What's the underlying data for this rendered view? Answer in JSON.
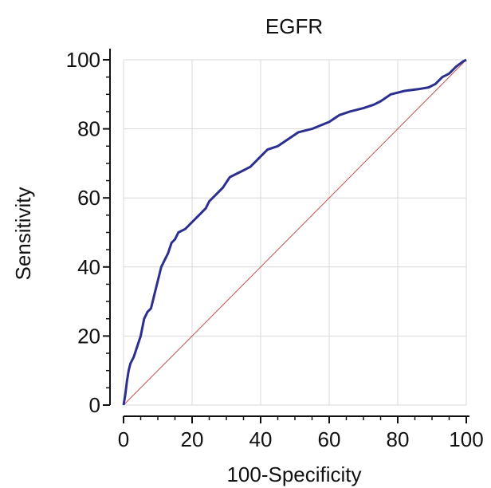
{
  "chart_data": {
    "type": "line",
    "title": "EGFR",
    "xlabel": "100-Specificity",
    "ylabel": "Sensitivity",
    "xlim": [
      0,
      100
    ],
    "ylim": [
      0,
      100
    ],
    "xticks": [
      "0",
      "20",
      "40",
      "60",
      "80",
      "100"
    ],
    "yticks": [
      "0",
      "20",
      "40",
      "60",
      "80",
      "100"
    ],
    "grid": true,
    "series": [
      {
        "color": "#2b2f8f",
        "points": [
          [
            0,
            0
          ],
          [
            0.5,
            3
          ],
          [
            1,
            7
          ],
          [
            1.5,
            10
          ],
          [
            2,
            12
          ],
          [
            3,
            14
          ],
          [
            4,
            17
          ],
          [
            5,
            20
          ],
          [
            6,
            25
          ],
          [
            7,
            27
          ],
          [
            8,
            28
          ],
          [
            9,
            32
          ],
          [
            10,
            36
          ],
          [
            11,
            40
          ],
          [
            12,
            42
          ],
          [
            13,
            44
          ],
          [
            14,
            47
          ],
          [
            15,
            48
          ],
          [
            16,
            50
          ],
          [
            18,
            51
          ],
          [
            20,
            53
          ],
          [
            22,
            55
          ],
          [
            24,
            57
          ],
          [
            25,
            59
          ],
          [
            27,
            61
          ],
          [
            29,
            63
          ],
          [
            31,
            66
          ],
          [
            33,
            67
          ],
          [
            35,
            68
          ],
          [
            37,
            69
          ],
          [
            39,
            71
          ],
          [
            40,
            72
          ],
          [
            42,
            74
          ],
          [
            45,
            75
          ],
          [
            48,
            77
          ],
          [
            51,
            79
          ],
          [
            55,
            80
          ],
          [
            60,
            82
          ],
          [
            63,
            84
          ],
          [
            66,
            85
          ],
          [
            70,
            86
          ],
          [
            73,
            87
          ],
          [
            75,
            88
          ],
          [
            78,
            90
          ],
          [
            82,
            91
          ],
          [
            86,
            91.5
          ],
          [
            89,
            92
          ],
          [
            91,
            93
          ],
          [
            93,
            95
          ],
          [
            95,
            96
          ],
          [
            97,
            98
          ],
          [
            99,
            99.5
          ],
          [
            100,
            100
          ]
        ]
      },
      {
        "color": "#c0504d",
        "points": [
          [
            0,
            0
          ],
          [
            100,
            100
          ]
        ]
      }
    ]
  }
}
